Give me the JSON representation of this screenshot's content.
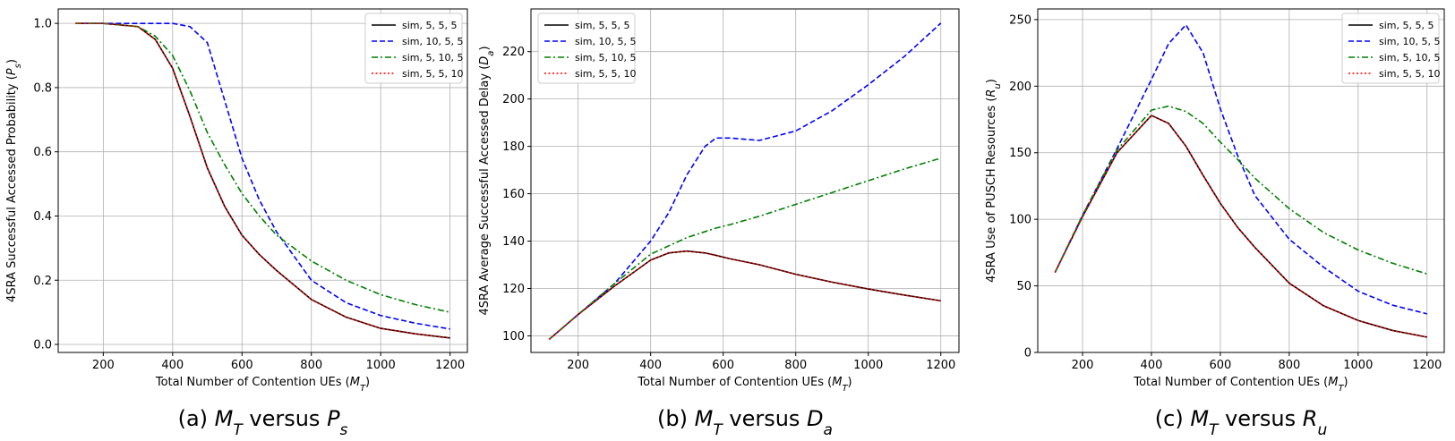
{
  "series_styles": [
    {
      "name": "sim, 5, 5, 5",
      "color": "#000000",
      "dash": "solid"
    },
    {
      "name": "sim, 10, 5, 5",
      "color": "#0000ff",
      "dash": "dashed"
    },
    {
      "name": "sim, 5, 10, 5",
      "color": "#008000",
      "dash": "dashdot"
    },
    {
      "name": "sim, 5, 5, 10",
      "color": "#ff0000",
      "dash": "dotted"
    }
  ],
  "chart_data": [
    {
      "type": "line",
      "caption": "(a) M_T versus P_s",
      "xlabel": "Total Number of Contention UEs (M_T)",
      "ylabel": "4SRA Successful Accessed Probability (P_s)",
      "xlim": [
        70,
        1250
      ],
      "ylim": [
        -0.025,
        1.045
      ],
      "xticks": [
        200,
        400,
        600,
        800,
        1000,
        1200
      ],
      "yticks": [
        0.0,
        0.2,
        0.4,
        0.6,
        0.8,
        1.0
      ],
      "ytick_labels": [
        "0.0",
        "0.2",
        "0.4",
        "0.6",
        "0.8",
        "1.0"
      ],
      "grid": true,
      "legend_position": "top-right",
      "x": [
        120,
        200,
        300,
        350,
        400,
        450,
        500,
        550,
        600,
        650,
        700,
        800,
        900,
        1000,
        1100,
        1200
      ],
      "series": [
        {
          "name": "sim, 5, 5, 5",
          "values": [
            1.0,
            1.0,
            0.99,
            0.95,
            0.86,
            0.71,
            0.55,
            0.43,
            0.34,
            0.28,
            0.23,
            0.14,
            0.085,
            0.05,
            0.033,
            0.02
          ]
        },
        {
          "name": "sim, 10, 5, 5",
          "values": [
            1.0,
            1.0,
            1.0,
            1.0,
            1.0,
            0.99,
            0.94,
            0.76,
            0.58,
            0.45,
            0.35,
            0.2,
            0.13,
            0.09,
            0.066,
            0.048
          ]
        },
        {
          "name": "sim, 5, 10, 5",
          "values": [
            1.0,
            1.0,
            0.99,
            0.96,
            0.9,
            0.79,
            0.66,
            0.56,
            0.47,
            0.4,
            0.34,
            0.26,
            0.2,
            0.155,
            0.124,
            0.1
          ]
        },
        {
          "name": "sim, 5, 5, 10",
          "values": [
            1.0,
            1.0,
            0.99,
            0.95,
            0.86,
            0.71,
            0.55,
            0.43,
            0.34,
            0.28,
            0.23,
            0.14,
            0.085,
            0.05,
            0.033,
            0.02
          ]
        }
      ]
    },
    {
      "type": "line",
      "caption": "(b) M_T versus D_a",
      "xlabel": "Total Number of Contention UEs (M_T)",
      "ylabel": "4SRA Average Successful Accessed Delay (D_a)",
      "xlim": [
        70,
        1250
      ],
      "ylim": [
        93,
        238
      ],
      "xticks": [
        200,
        400,
        600,
        800,
        1000,
        1200
      ],
      "yticks": [
        100,
        120,
        140,
        160,
        180,
        200,
        220
      ],
      "ytick_labels": [
        "100",
        "120",
        "140",
        "160",
        "180",
        "200",
        "220"
      ],
      "grid": true,
      "legend_position": "top-left",
      "x": [
        120,
        200,
        300,
        400,
        450,
        500,
        550,
        580,
        620,
        700,
        800,
        900,
        1000,
        1100,
        1200
      ],
      "series": [
        {
          "name": "sim, 5, 5, 5",
          "values": [
            98.5,
            109,
            121,
            132,
            135,
            135.8,
            135,
            134,
            132.5,
            130,
            126,
            122.7,
            119.8,
            117.2,
            114.8
          ]
        },
        {
          "name": "sim, 10, 5, 5",
          "values": [
            98.5,
            109,
            122,
            140,
            152,
            168,
            180,
            183.5,
            183.5,
            182.5,
            186.5,
            195,
            206,
            218,
            232
          ]
        },
        {
          "name": "sim, 5, 10, 5",
          "values": [
            98.5,
            109,
            122,
            134.5,
            138,
            141.5,
            144,
            145.5,
            147,
            150.5,
            155.5,
            160.5,
            165.5,
            170.5,
            175
          ]
        },
        {
          "name": "sim, 5, 5, 10",
          "values": [
            98.5,
            109,
            121,
            132,
            135,
            135.8,
            135,
            134,
            132.5,
            130,
            126,
            122.7,
            119.8,
            117.2,
            114.8
          ]
        }
      ]
    },
    {
      "type": "line",
      "caption": "(c) M_T versus R_u",
      "xlabel": "Total Number of Contention UEs (M_T)",
      "ylabel": "4SRA Use of PUSCH Resources (R_u)",
      "xlim": [
        70,
        1250
      ],
      "ylim": [
        0,
        258
      ],
      "xticks": [
        200,
        400,
        600,
        800,
        1000,
        1200
      ],
      "yticks": [
        0,
        50,
        100,
        150,
        200,
        250
      ],
      "ytick_labels": [
        "0",
        "50",
        "100",
        "150",
        "200",
        "250"
      ],
      "grid": true,
      "legend_position": "top-right",
      "x": [
        120,
        200,
        300,
        400,
        450,
        500,
        550,
        600,
        650,
        700,
        800,
        900,
        1000,
        1100,
        1200
      ],
      "series": [
        {
          "name": "sim, 5, 5, 5",
          "values": [
            60,
            102,
            150,
            178,
            172,
            155,
            133,
            112,
            94,
            79,
            52,
            35,
            24,
            16.5,
            11.5
          ]
        },
        {
          "name": "sim, 10, 5, 5",
          "values": [
            60,
            103,
            153,
            205,
            232,
            246,
            225,
            183,
            148,
            118,
            85,
            64,
            46,
            35.5,
            29
          ]
        },
        {
          "name": "sim, 5, 10, 5",
          "values": [
            60,
            103,
            152,
            182,
            185,
            181,
            172,
            158,
            145,
            131,
            108,
            90,
            77,
            67,
            59
          ]
        },
        {
          "name": "sim, 5, 5, 10",
          "values": [
            60,
            102,
            150,
            178,
            172,
            155,
            133,
            112,
            94,
            79,
            52,
            35,
            24,
            16.5,
            11.5
          ]
        }
      ]
    }
  ]
}
